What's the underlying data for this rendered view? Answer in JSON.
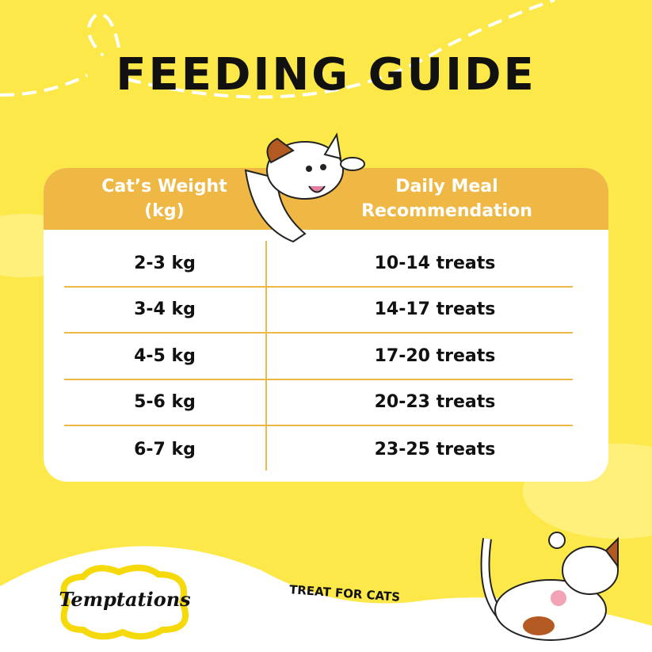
{
  "title": "FEEDING GUIDE",
  "table": {
    "headers": [
      "Cat’s Weight (kg)",
      "Daily Meal Recommendation"
    ],
    "header_lines": [
      [
        "Cat’s Weight",
        "(kg)"
      ],
      [
        "Daily Meal",
        "Recommendation"
      ]
    ],
    "rows": [
      {
        "weight": "2-3 kg",
        "treats": "10-14 treats"
      },
      {
        "weight": "3-4 kg",
        "treats": "14-17 treats"
      },
      {
        "weight": "4-5 kg",
        "treats": "17-20 treats"
      },
      {
        "weight": "5-6 kg",
        "treats": "20-23 treats"
      },
      {
        "weight": "6-7 kg",
        "treats": "23-25 treats"
      }
    ]
  },
  "brand": {
    "logo": "Temptations",
    "tagline": "TREAT FOR CATS"
  },
  "colors": {
    "background": "#fde84a",
    "header": "#efb743",
    "divider": "#efb743"
  }
}
